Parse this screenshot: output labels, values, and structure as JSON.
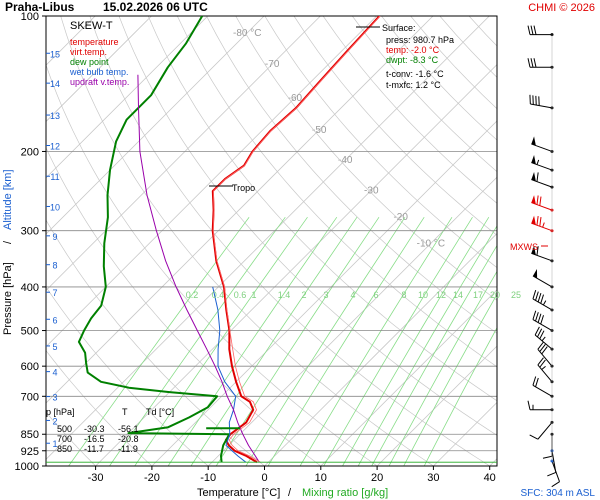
{
  "header": {
    "station": "Praha-Libus",
    "datetime": "15.02.2026 06 UTC",
    "credit": "CHMI © 2026"
  },
  "legend": {
    "title": "SKEW-T",
    "items": [
      {
        "label": "temperature",
        "color": "#e00000"
      },
      {
        "label": "virt.temp.",
        "color": "#e00000"
      },
      {
        "label": "dew point",
        "color": "#008000"
      },
      {
        "label": "wet bulb temp.",
        "color": "#1a5fd0"
      },
      {
        "label": "updraft v.temp.",
        "color": "#9900aa"
      }
    ]
  },
  "surface": {
    "title": "Surface:",
    "press": "press: 980.7 hPa",
    "temp": "temp: -2.0 °C",
    "dwpt": "dwpt: -8.3 °C",
    "tconv": "t-conv: -1.6 °C",
    "tmxfc": "t-mxfc: 1.2 °C"
  },
  "labels": {
    "tropo": "Tropo",
    "mxws": "MXWS",
    "sfc": "SFC: 304 m ASL"
  },
  "table": {
    "header": [
      "p [hPa]",
      "T",
      "Td [°C]"
    ],
    "rows": [
      [
        "500",
        "-30.3",
        "-56.1"
      ],
      [
        "700",
        "-16.5",
        "-20.8"
      ],
      [
        "850",
        "-11.7",
        "-11.9"
      ]
    ]
  },
  "chart_data": {
    "type": "line",
    "xlabel": "Temperature [°C]",
    "xlabel_sep": "/",
    "xlabel2": "Mixing ratio [g/kg]",
    "ylabel": "Pressure [hPa]",
    "ylabel_sep": "/",
    "ylabel2": "Altitude [km]",
    "xlim": [
      -35,
      45
    ],
    "ylim": [
      1000,
      100
    ],
    "y_scale": "log",
    "x_ticks": [
      -30,
      -20,
      -10,
      0,
      10,
      20,
      30,
      40
    ],
    "pressure_ticks": [
      100,
      200,
      300,
      400,
      500,
      600,
      700,
      850,
      925,
      1000
    ],
    "altitude_ticks": [
      {
        "km": "1",
        "p": 890
      },
      {
        "km": "2",
        "p": 792
      },
      {
        "km": "3",
        "p": 701
      },
      {
        "km": "4",
        "p": 617
      },
      {
        "km": "5",
        "p": 541
      },
      {
        "km": "6",
        "p": 472
      },
      {
        "km": "7",
        "p": 411
      },
      {
        "km": "8",
        "p": 357
      },
      {
        "km": "9",
        "p": 308
      },
      {
        "km": "10",
        "p": 265
      },
      {
        "km": "11",
        "p": 227
      },
      {
        "km": "12",
        "p": 194
      },
      {
        "km": "13",
        "p": 166
      },
      {
        "km": "14",
        "p": 141
      },
      {
        "km": "15",
        "p": 121
      }
    ],
    "isotherm_labels": [
      {
        "label": "-80 °C",
        "t": -80,
        "p": 109
      },
      {
        "label": "-70",
        "t": -70,
        "p": 128
      },
      {
        "label": "-60",
        "t": -60,
        "p": 152
      },
      {
        "label": "-50",
        "t": -50,
        "p": 179
      },
      {
        "label": "-40",
        "t": -40,
        "p": 209
      },
      {
        "label": "-30",
        "t": -30,
        "p": 244
      },
      {
        "label": "-20",
        "t": -20,
        "p": 280
      },
      {
        "label": "-10 °C",
        "t": -10,
        "p": 320
      }
    ],
    "mixing_ratio_labels": [
      "0.2",
      "0.4",
      "0.6",
      "1",
      "1.4",
      "2",
      "3",
      "4",
      "6",
      "8",
      "10",
      "12",
      "14",
      "17",
      "20",
      "25"
    ],
    "series": [
      {
        "name": "temperature",
        "color": "#e00000",
        "points": [
          {
            "p": 980.7,
            "t": -2.0
          },
          {
            "p": 950,
            "t": -5.0
          },
          {
            "p": 925,
            "t": -8.0
          },
          {
            "p": 900,
            "t": -10.0
          },
          {
            "p": 875,
            "t": -11.5
          },
          {
            "p": 850,
            "t": -11.7
          },
          {
            "p": 800,
            "t": -11.0
          },
          {
            "p": 750,
            "t": -12.0
          },
          {
            "p": 720,
            "t": -14.0
          },
          {
            "p": 700,
            "t": -16.5
          },
          {
            "p": 650,
            "t": -20.0
          },
          {
            "p": 600,
            "t": -23.5
          },
          {
            "p": 550,
            "t": -27.0
          },
          {
            "p": 500,
            "t": -30.3
          },
          {
            "p": 450,
            "t": -34.5
          },
          {
            "p": 400,
            "t": -39.0
          },
          {
            "p": 350,
            "t": -45.0
          },
          {
            "p": 300,
            "t": -51.0
          },
          {
            "p": 270,
            "t": -54.5
          },
          {
            "p": 245,
            "t": -58.0
          },
          {
            "p": 230,
            "t": -58.0
          },
          {
            "p": 215,
            "t": -57.0
          },
          {
            "p": 200,
            "t": -58.0
          },
          {
            "p": 180,
            "t": -58.5
          },
          {
            "p": 160,
            "t": -58.0
          },
          {
            "p": 140,
            "t": -58.5
          },
          {
            "p": 120,
            "t": -59.0
          },
          {
            "p": 100,
            "t": -59.5
          }
        ]
      },
      {
        "name": "dew point",
        "color": "#008000",
        "points": [
          {
            "p": 980.7,
            "t": -8.3
          },
          {
            "p": 950,
            "t": -9.5
          },
          {
            "p": 900,
            "t": -11.0
          },
          {
            "p": 850,
            "t": -11.9
          },
          {
            "p": 845,
            "t": -30.0
          },
          {
            "p": 820,
            "t": -24.0
          },
          {
            "p": 780,
            "t": -22.0
          },
          {
            "p": 740,
            "t": -20.5
          },
          {
            "p": 700,
            "t": -20.8
          },
          {
            "p": 685,
            "t": -30.0
          },
          {
            "p": 670,
            "t": -38.0
          },
          {
            "p": 650,
            "t": -44.0
          },
          {
            "p": 620,
            "t": -48.0
          },
          {
            "p": 590,
            "t": -50.0
          },
          {
            "p": 560,
            "t": -52.0
          },
          {
            "p": 530,
            "t": -55.0
          },
          {
            "p": 500,
            "t": -56.1
          },
          {
            "p": 470,
            "t": -57.0
          },
          {
            "p": 440,
            "t": -57.5
          },
          {
            "p": 400,
            "t": -60.0
          },
          {
            "p": 360,
            "t": -64.0
          },
          {
            "p": 320,
            "t": -68.0
          },
          {
            "p": 280,
            "t": -72.0
          },
          {
            "p": 250,
            "t": -76.0
          },
          {
            "p": 220,
            "t": -80.0
          },
          {
            "p": 190,
            "t": -84.0
          },
          {
            "p": 170,
            "t": -86.0
          },
          {
            "p": 150,
            "t": -86.0
          },
          {
            "p": 130,
            "t": -88.0
          },
          {
            "p": 115,
            "t": -89.0
          },
          {
            "p": 100,
            "t": -91.0
          }
        ]
      },
      {
        "name": "wet bulb temp.",
        "color": "#1a5fd0",
        "points": [
          {
            "p": 980.7,
            "t": -4.0
          },
          {
            "p": 950,
            "t": -6.5
          },
          {
            "p": 900,
            "t": -10.5
          },
          {
            "p": 850,
            "t": -11.8
          },
          {
            "p": 800,
            "t": -14.0
          },
          {
            "p": 750,
            "t": -15.5
          },
          {
            "p": 700,
            "t": -17.5
          },
          {
            "p": 650,
            "t": -22.0
          },
          {
            "p": 600,
            "t": -26.0
          },
          {
            "p": 550,
            "t": -29.0
          },
          {
            "p": 500,
            "t": -32.0
          },
          {
            "p": 450,
            "t": -36.0
          },
          {
            "p": 400,
            "t": -41.0
          }
        ]
      },
      {
        "name": "updraft v.temp.",
        "color": "#9900aa",
        "points": [
          {
            "p": 980.7,
            "t": -1.6
          },
          {
            "p": 900,
            "t": -6.5
          },
          {
            "p": 850,
            "t": -9.5
          },
          {
            "p": 800,
            "t": -12.5
          },
          {
            "p": 750,
            "t": -15.5
          },
          {
            "p": 700,
            "t": -19.0
          },
          {
            "p": 650,
            "t": -22.5
          },
          {
            "p": 600,
            "t": -26.5
          },
          {
            "p": 550,
            "t": -31.0
          },
          {
            "p": 500,
            "t": -36.0
          },
          {
            "p": 450,
            "t": -41.5
          },
          {
            "p": 400,
            "t": -47.5
          },
          {
            "p": 350,
            "t": -54.0
          },
          {
            "p": 300,
            "t": -61.0
          },
          {
            "p": 250,
            "t": -69.0
          },
          {
            "p": 200,
            "t": -78.0
          },
          {
            "p": 160,
            "t": -86.0
          },
          {
            "p": 135,
            "t": -92.0
          }
        ]
      }
    ],
    "winds": [
      {
        "p": 975,
        "dir": 160,
        "spd": 10
      },
      {
        "p": 925,
        "dir": 170,
        "spd": 10
      },
      {
        "p": 850,
        "dir": 180,
        "spd": 10
      },
      {
        "p": 800,
        "dir": 220,
        "spd": 10
      },
      {
        "p": 750,
        "dir": 270,
        "spd": 15
      },
      {
        "p": 700,
        "dir": 300,
        "spd": 20
      },
      {
        "p": 650,
        "dir": 320,
        "spd": 25
      },
      {
        "p": 600,
        "dir": 320,
        "spd": 30
      },
      {
        "p": 550,
        "dir": 310,
        "spd": 35
      },
      {
        "p": 500,
        "dir": 300,
        "spd": 40
      },
      {
        "p": 450,
        "dir": 300,
        "spd": 45
      },
      {
        "p": 400,
        "dir": 300,
        "spd": 50
      },
      {
        "p": 350,
        "dir": 290,
        "spd": 60
      },
      {
        "p": 300,
        "dir": 290,
        "spd": 75
      },
      {
        "p": 270,
        "dir": 290,
        "spd": 70
      },
      {
        "p": 240,
        "dir": 290,
        "spd": 60
      },
      {
        "p": 220,
        "dir": 290,
        "spd": 55
      },
      {
        "p": 200,
        "dir": 290,
        "spd": 50
      },
      {
        "p": 160,
        "dir": 280,
        "spd": 40
      },
      {
        "p": 130,
        "dir": 270,
        "spd": 30
      },
      {
        "p": 110,
        "dir": 270,
        "spd": 30
      }
    ]
  }
}
